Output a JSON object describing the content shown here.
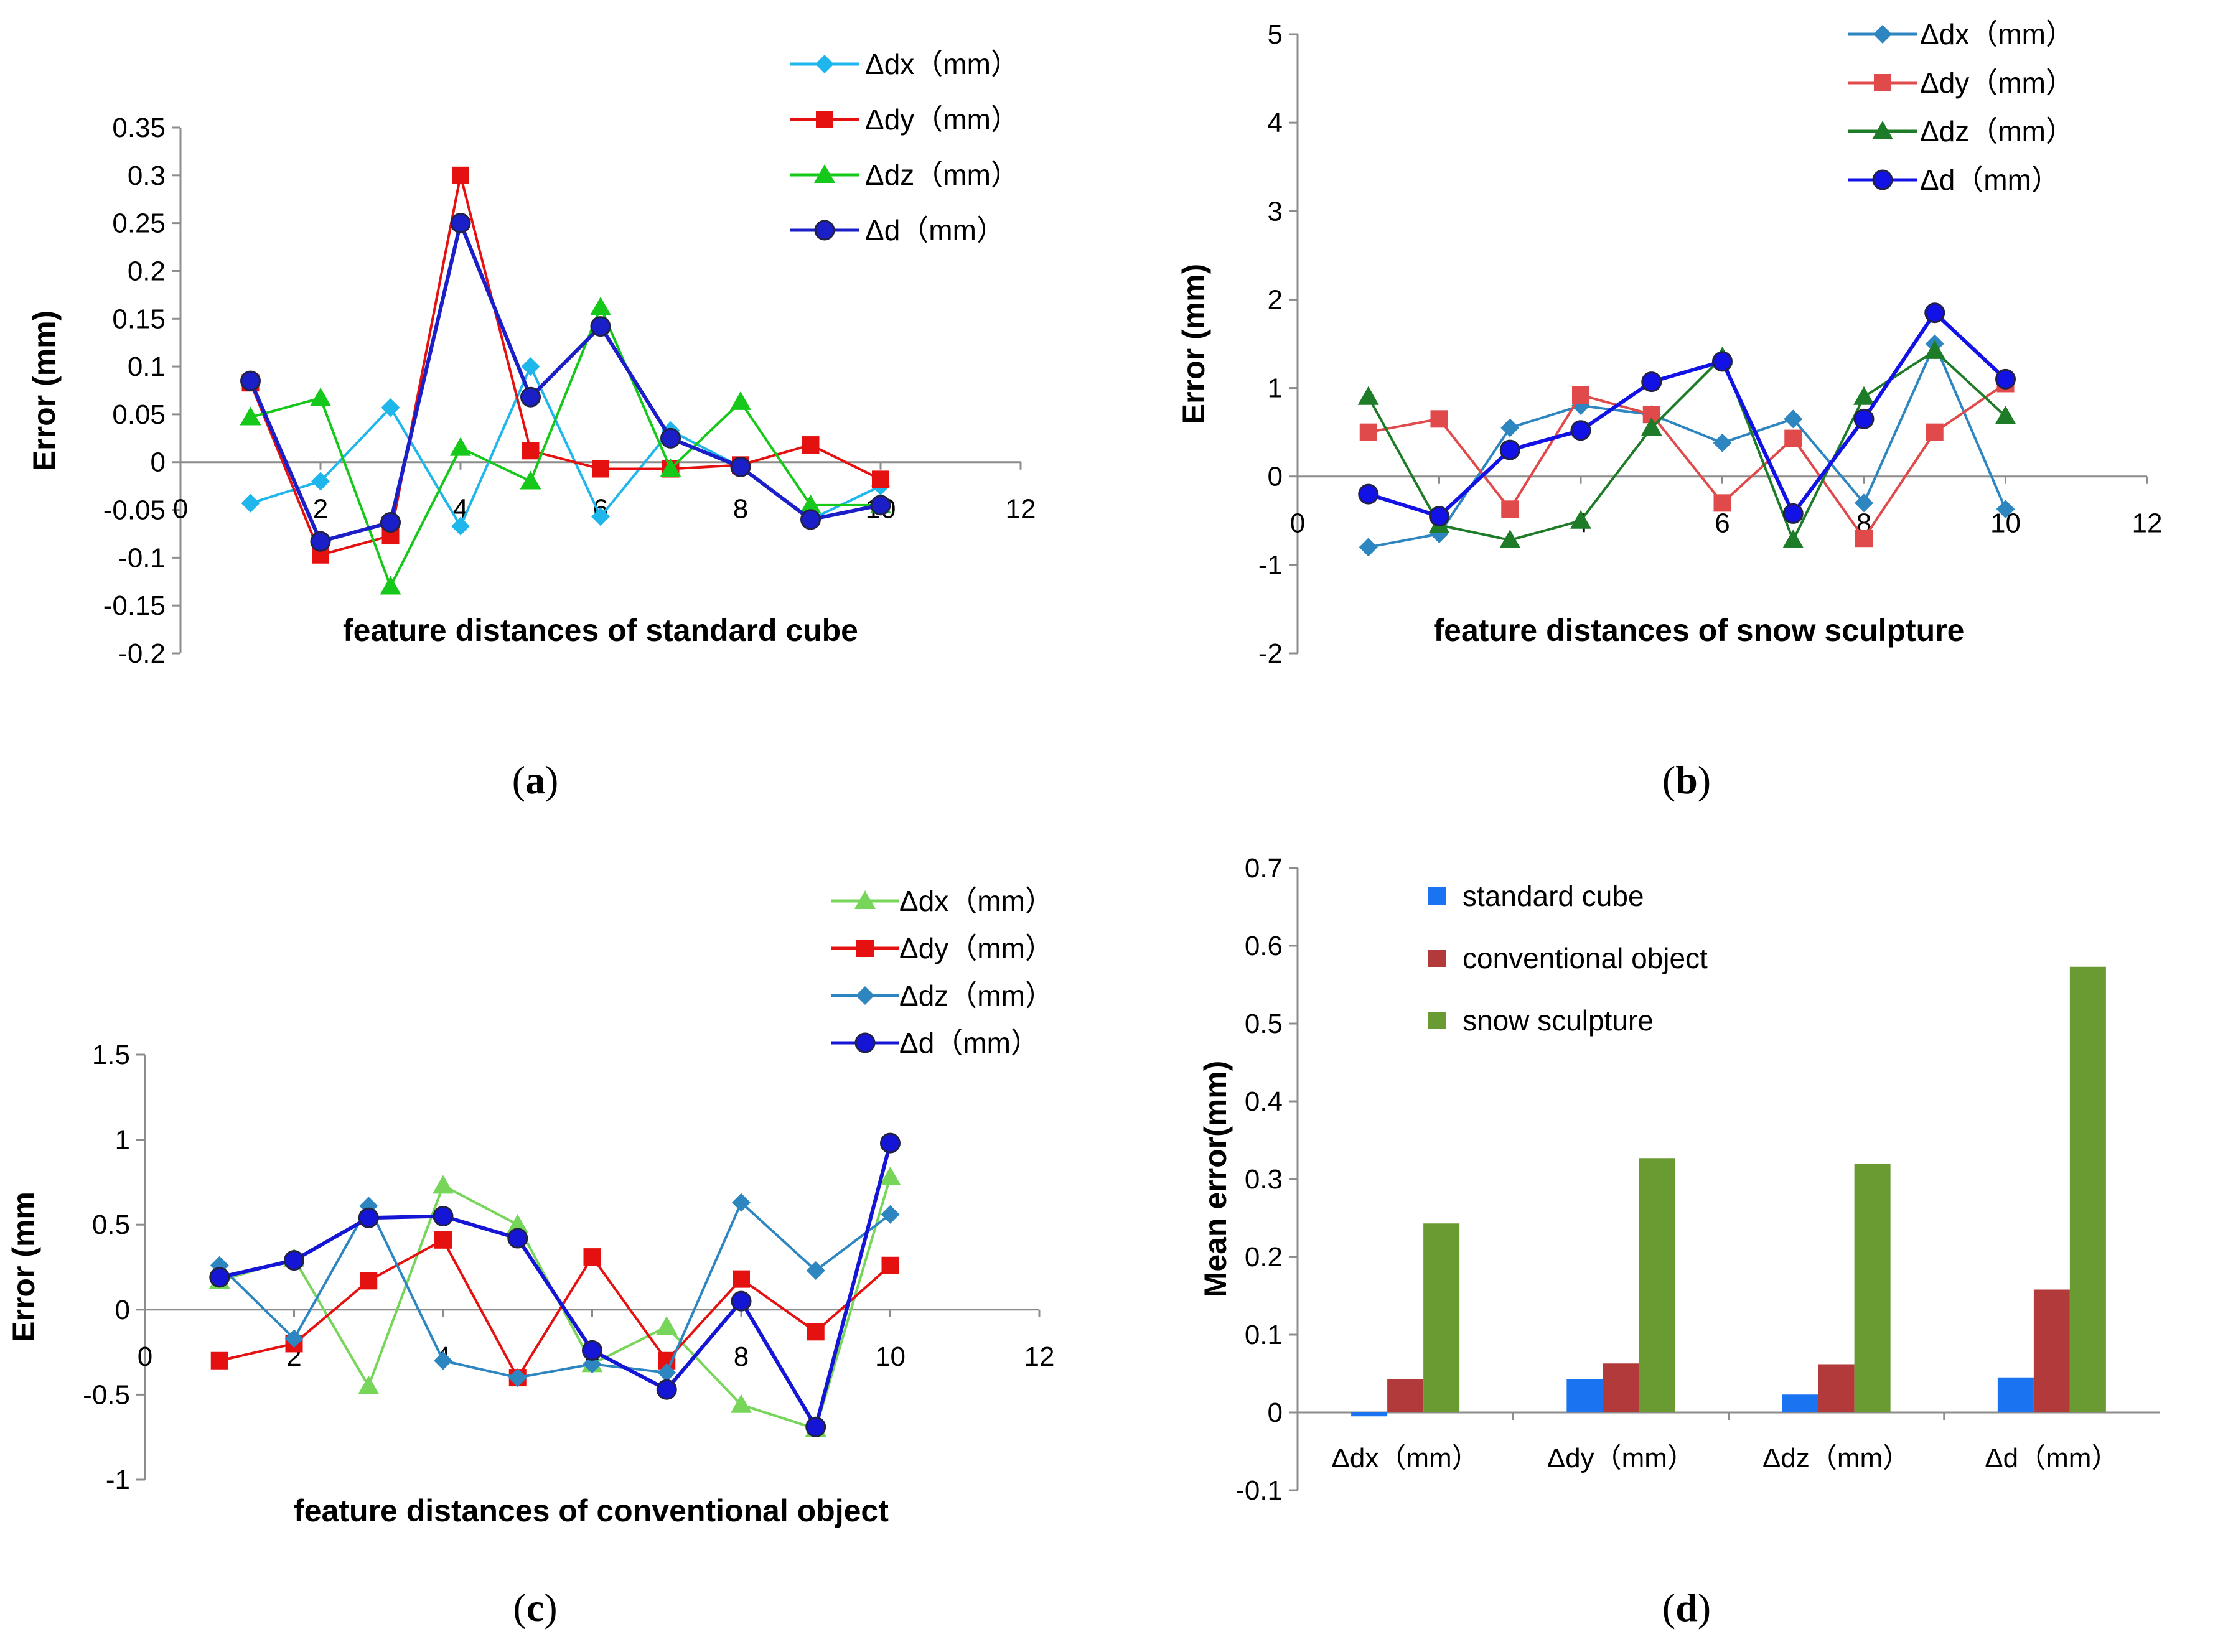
{
  "chart_data": [
    {
      "id": "a",
      "type": "line",
      "caption_letter": "a",
      "xlabel": "feature distances of standard cube",
      "ylabel": "Error (mm)",
      "xlim": [
        0,
        12
      ],
      "xticks": [
        "0",
        "2",
        "4",
        "6",
        "8",
        "10",
        "12"
      ],
      "ylim": [
        -0.2,
        0.35
      ],
      "yticks": [
        "-0.2",
        "-0.15",
        "-0.1",
        "-0.05",
        "0",
        "0.05",
        "0.1",
        "0.15",
        "0.2",
        "0.25",
        "0.3",
        "0.35"
      ],
      "x": [
        1,
        2,
        3,
        4,
        5,
        6,
        7,
        8,
        9,
        10
      ],
      "series": [
        {
          "name": "Δdx（mm）",
          "color": "#1fb6ec",
          "marker": "diamond",
          "values": [
            -0.043,
            -0.02,
            0.057,
            -0.067,
            0.1,
            -0.057,
            0.033,
            -0.005,
            -0.06,
            -0.025
          ]
        },
        {
          "name": "Δdy（mm）",
          "color": "#e51010",
          "marker": "square",
          "values": [
            0.083,
            -0.097,
            -0.077,
            0.3,
            0.012,
            -0.007,
            -0.007,
            -0.003,
            0.018,
            -0.018
          ]
        },
        {
          "name": "Δdz（mm）",
          "color": "#16c81a",
          "marker": "triangle",
          "values": [
            0.047,
            0.067,
            -0.13,
            0.015,
            -0.02,
            0.162,
            -0.007,
            0.063,
            -0.045,
            -0.045
          ]
        },
        {
          "name": "Δd（mm）",
          "color": "#1b1fc8",
          "marker": "circle",
          "values": [
            0.085,
            -0.083,
            -0.063,
            0.25,
            0.068,
            0.142,
            0.025,
            -0.005,
            -0.06,
            -0.045
          ]
        }
      ]
    },
    {
      "id": "b",
      "type": "line",
      "caption_letter": "b",
      "xlabel": "feature distances of snow sculpture",
      "ylabel": "Error (mm)",
      "xlim": [
        0,
        12
      ],
      "xticks": [
        "0",
        "2",
        "4",
        "6",
        "8",
        "10",
        "12"
      ],
      "ylim": [
        -2,
        5
      ],
      "yticks": [
        "-2",
        "-1",
        "0",
        "1",
        "2",
        "3",
        "4",
        "5"
      ],
      "x": [
        1,
        2,
        3,
        4,
        5,
        6,
        7,
        8,
        9,
        10
      ],
      "series": [
        {
          "name": "Δdx（mm）",
          "color": "#2e86c1",
          "marker": "diamond",
          "values": [
            -0.8,
            -0.65,
            0.55,
            0.8,
            0.7,
            0.38,
            0.65,
            -0.3,
            1.5,
            -0.37
          ]
        },
        {
          "name": "Δdy（mm）",
          "color": "#e04a4a",
          "marker": "square",
          "values": [
            0.5,
            0.65,
            -0.37,
            0.92,
            0.7,
            -0.3,
            0.43,
            -0.7,
            0.5,
            1.05
          ]
        },
        {
          "name": "Δdz（mm）",
          "color": "#1e7b28",
          "marker": "triangle",
          "values": [
            0.9,
            -0.55,
            -0.72,
            -0.5,
            0.55,
            1.35,
            -0.72,
            0.9,
            1.42,
            0.68
          ]
        },
        {
          "name": "Δd（mm）",
          "color": "#1212e6",
          "marker": "circle",
          "values": [
            -0.2,
            -0.45,
            0.3,
            0.52,
            1.07,
            1.3,
            -0.42,
            0.65,
            1.85,
            1.1
          ]
        }
      ]
    },
    {
      "id": "c",
      "type": "line",
      "caption_letter": "c",
      "xlabel": "feature distances of conventional object",
      "ylabel": "Error (mm",
      "xlim": [
        0,
        12
      ],
      "xticks": [
        "0",
        "2",
        "4",
        "6",
        "8",
        "10",
        "12"
      ],
      "ylim": [
        -1,
        1.5
      ],
      "yticks": [
        "-1",
        "-0.5",
        "0",
        "0.5",
        "1",
        "1.5"
      ],
      "x": [
        1,
        2,
        3,
        4,
        5,
        6,
        7,
        8,
        9,
        10
      ],
      "series": [
        {
          "name": "Δdx（mm）",
          "color": "#77d65a",
          "marker": "triangle",
          "values": [
            0.17,
            0.3,
            -0.45,
            0.73,
            0.5,
            -0.32,
            -0.1,
            -0.56,
            -0.7,
            0.78
          ]
        },
        {
          "name": "Δdy（mm）",
          "color": "#e51010",
          "marker": "square",
          "values": [
            -0.3,
            -0.2,
            0.17,
            0.41,
            -0.4,
            0.31,
            -0.3,
            0.18,
            -0.13,
            0.26
          ]
        },
        {
          "name": "Δdz（mm）",
          "color": "#2e86c1",
          "marker": "diamond",
          "values": [
            0.26,
            -0.17,
            0.61,
            -0.3,
            -0.4,
            -0.32,
            -0.37,
            0.63,
            0.23,
            0.56
          ]
        },
        {
          "name": "Δd（mm）",
          "color": "#1515d6",
          "marker": "circle",
          "values": [
            0.19,
            0.29,
            0.54,
            0.55,
            0.42,
            -0.24,
            -0.47,
            0.05,
            -0.69,
            0.98
          ]
        }
      ]
    },
    {
      "id": "d",
      "type": "bar",
      "caption_letter": "d",
      "ylabel": "Mean error(mm)",
      "ylim": [
        -0.1,
        0.7
      ],
      "yticks": [
        "-0.1",
        "0",
        "0.1",
        "0.2",
        "0.3",
        "0.4",
        "0.5",
        "0.6",
        "0.7"
      ],
      "categories": [
        "Δdx（mm）",
        "Δdy（mm）",
        "Δdz（mm）",
        "Δd（mm）"
      ],
      "series": [
        {
          "name": " standard cube",
          "color": "#1a73f0",
          "values": [
            -0.005,
            0.043,
            0.023,
            0.045
          ]
        },
        {
          "name": "conventional object",
          "color": "#b23a3a",
          "values": [
            0.043,
            0.063,
            0.062,
            0.158
          ]
        },
        {
          "name": "snow sculpture",
          "color": "#6a9a32",
          "values": [
            0.243,
            0.327,
            0.32,
            0.573
          ]
        }
      ]
    }
  ]
}
